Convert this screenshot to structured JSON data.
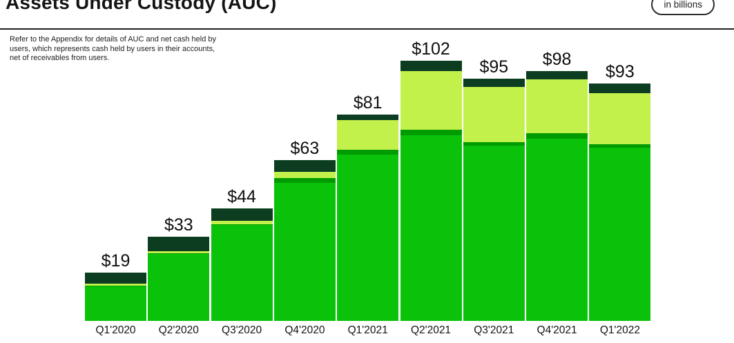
{
  "header": {
    "title": "Assets Under Custody (AUC)",
    "unit_badge": "in billions"
  },
  "note": {
    "lines": [
      "Refer to the Appendix for details of AUC and net cash held by",
      "users, which represents cash held by users in their accounts,",
      "net of receivables from users."
    ]
  },
  "colors": {
    "bright_green": "#0BC20B",
    "medium_green": "#009B00",
    "lime_green": "#C3F14C",
    "dark_green": "#0C3D21",
    "text": "#111111",
    "divider": "#1F1F1F"
  },
  "chart_data": {
    "type": "bar",
    "stacked": true,
    "title": "Assets Under Custody (AUC)",
    "unit": "in billions (USD)",
    "categories": [
      "Q1'2020",
      "Q2'2020",
      "Q3'2020",
      "Q4'2020",
      "Q1'2021",
      "Q2'2021",
      "Q3'2021",
      "Q4'2021",
      "Q1'2022"
    ],
    "totals": [
      19,
      33,
      44,
      63,
      81,
      102,
      95,
      98,
      93
    ],
    "total_labels": [
      "$19",
      "$33",
      "$44",
      "$63",
      "$81",
      "$102",
      "$95",
      "$98",
      "$93"
    ],
    "series": [
      {
        "name": "bottom-bright-green-segment",
        "color_key": "bright_green",
        "values": [
          13.6,
          26.5,
          37.5,
          54.0,
          65.3,
          72.7,
          68.8,
          71.3,
          67.8
        ]
      },
      {
        "name": "thin-medium-green-segment",
        "color_key": "medium_green",
        "values": [
          0.1,
          0.1,
          0.3,
          1.9,
          1.9,
          2.2,
          1.4,
          2.4,
          1.4
        ]
      },
      {
        "name": "lime-green-segment",
        "color_key": "lime_green",
        "values": [
          0.8,
          0.8,
          1.4,
          2.5,
          11.4,
          23.0,
          21.6,
          21.1,
          20.0
        ]
      },
      {
        "name": "top-dark-green-segment",
        "color_key": "dark_green",
        "values": [
          4.5,
          5.6,
          4.8,
          4.6,
          2.4,
          4.1,
          3.2,
          3.2,
          3.8
        ]
      }
    ],
    "ylim": [
      0,
      102
    ],
    "legend": "none",
    "grid": "off"
  }
}
